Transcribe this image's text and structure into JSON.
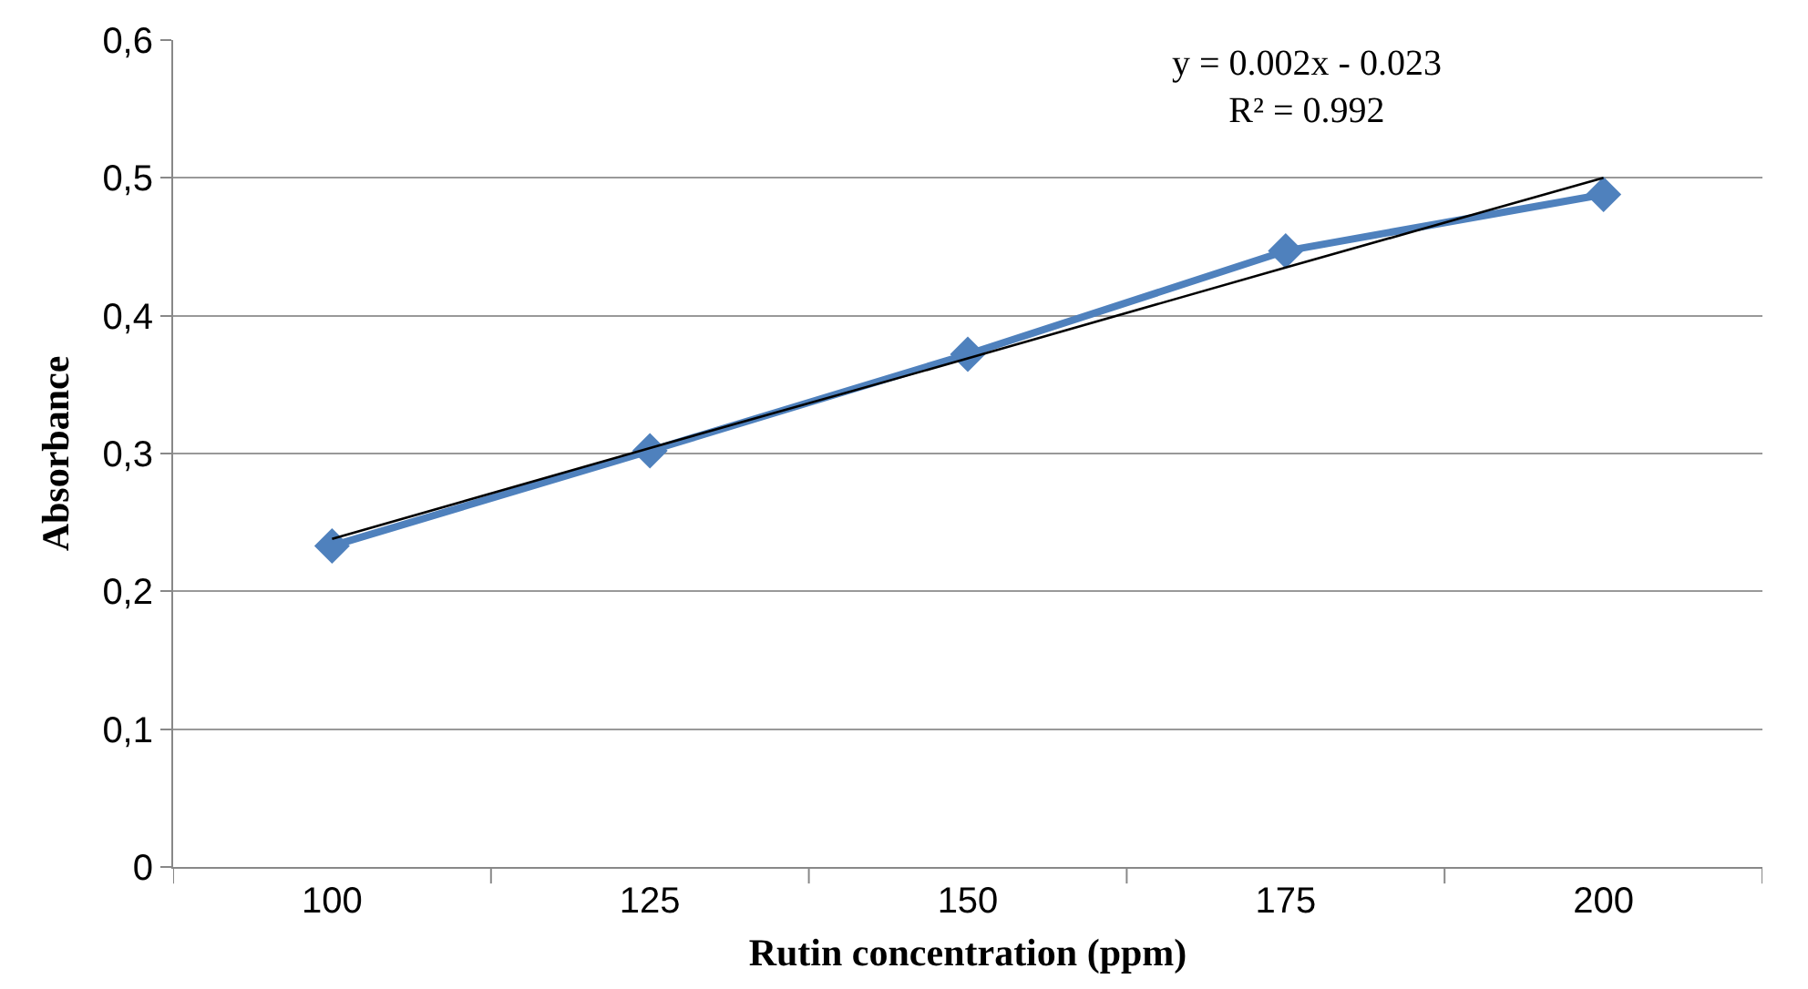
{
  "chart_data": {
    "type": "line",
    "xlabel": "Rutin concentration (ppm)",
    "ylabel": "Absorbance",
    "categories": [
      "100",
      "125",
      "150",
      "175",
      "200"
    ],
    "series": [
      {
        "color": "#4f81bd",
        "values": [
          0.233,
          0.302,
          0.372,
          0.447,
          0.488
        ],
        "marker": "diamond"
      },
      {
        "type": "line",
        "color": "#000000",
        "values": [
          0.238,
          0.304,
          0.369,
          0.435,
          0.5
        ],
        "marker": "none"
      }
    ],
    "ylim": [
      0,
      0.6
    ],
    "yticks": [
      {
        "value": 0,
        "label": "0"
      },
      {
        "value": 0.1,
        "label": "0,1"
      },
      {
        "value": 0.2,
        "label": "0,2"
      },
      {
        "value": 0.3,
        "label": "0,3"
      },
      {
        "value": 0.4,
        "label": "0,4"
      },
      {
        "value": 0.5,
        "label": "0,5"
      },
      {
        "value": 0.6,
        "label": "0,6"
      }
    ],
    "grid": "y",
    "annotations": [
      "y = 0.002x - 0.023\nR² = 0.992"
    ]
  }
}
